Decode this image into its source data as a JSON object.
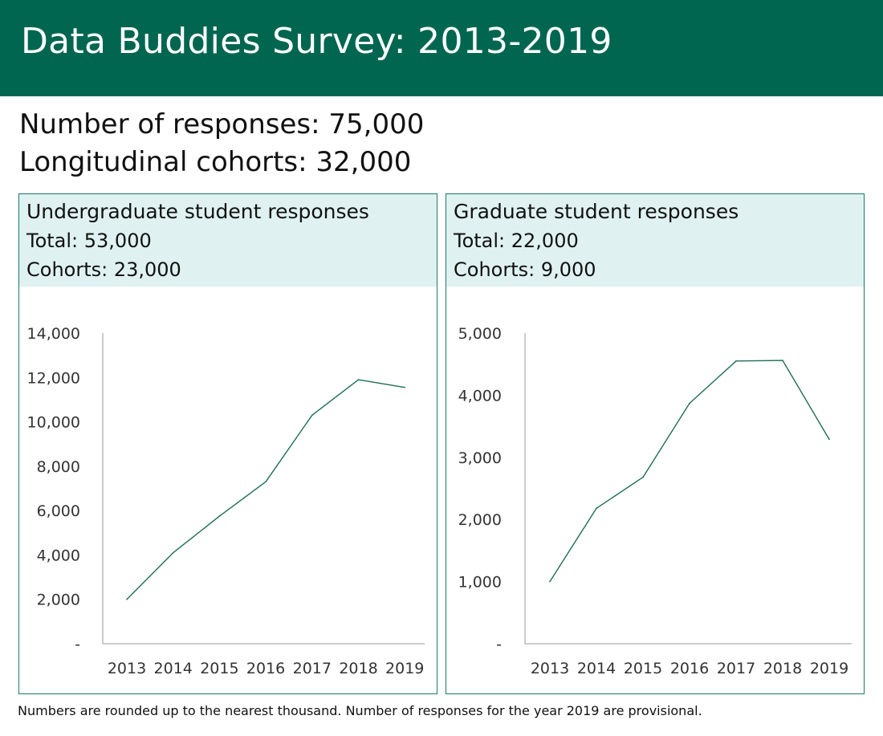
{
  "header": {
    "title": "Data Buddies Survey: 2013-2019"
  },
  "summary": {
    "responses": "Number of responses: 75,000",
    "cohorts": "Longitudinal cohorts: 32,000"
  },
  "panels": [
    {
      "title": "Undergraduate student responses",
      "total": "Total: 53,000",
      "cohorts": "Cohorts: 23,000"
    },
    {
      "title": "Graduate student responses",
      "total": "Total: 22,000",
      "cohorts": "Cohorts: 9,000"
    }
  ],
  "footnote": "Numbers are rounded up to the nearest thousand. Number of responses for the year 2019 are provisional.",
  "colors": {
    "banner": "#006650",
    "panel_header": "#dff2f1",
    "line": "#1e6e58",
    "border": "#1e7a68"
  },
  "chart_data": [
    {
      "type": "line",
      "title": "",
      "xlabel": "",
      "ylabel": "",
      "categories": [
        "2013",
        "2014",
        "2015",
        "2016",
        "2017",
        "2018",
        "2019"
      ],
      "series": [
        {
          "values": [
            2000,
            4100,
            5750,
            7300,
            10300,
            11900,
            11550
          ]
        }
      ],
      "ylim": [
        0,
        14000
      ],
      "yticks": [
        0,
        2000,
        4000,
        6000,
        8000,
        10000,
        12000,
        14000
      ],
      "ytick_labels": [
        "-",
        "2,000",
        "4,000",
        "6,000",
        "8,000",
        "10,000",
        "12,000",
        "14,000"
      ],
      "grid": false,
      "legend": "none"
    },
    {
      "type": "line",
      "title": "",
      "xlabel": "",
      "ylabel": "",
      "categories": [
        "2013",
        "2014",
        "2015",
        "2016",
        "2017",
        "2018",
        "2019"
      ],
      "series": [
        {
          "values": [
            1000,
            2180,
            2680,
            3870,
            4550,
            4560,
            3290
          ]
        }
      ],
      "ylim": [
        0,
        5000
      ],
      "yticks": [
        0,
        1000,
        2000,
        3000,
        4000,
        5000
      ],
      "ytick_labels": [
        "-",
        "1,000",
        "2,000",
        "3,000",
        "4,000",
        "5,000"
      ],
      "grid": false,
      "legend": "none"
    }
  ]
}
